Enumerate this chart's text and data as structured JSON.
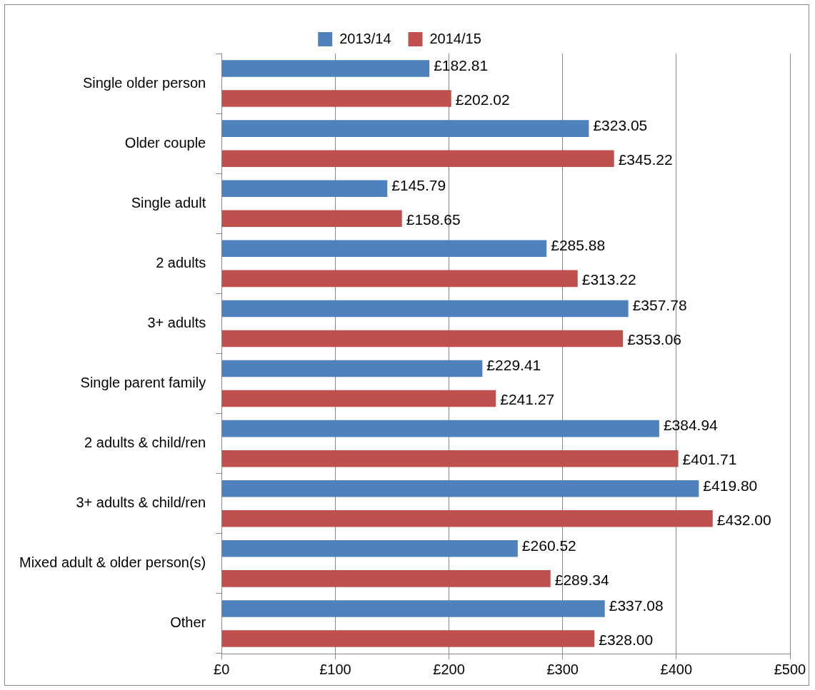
{
  "chart_data": {
    "type": "bar",
    "orientation": "horizontal",
    "legend": "top",
    "grid": "x",
    "categories": [
      "Single older person",
      "Older couple",
      "Single adult",
      "2 adults",
      "3+ adults",
      "Single parent family",
      "2 adults & child/ren",
      "3+ adults & child/ren",
      "Mixed adult & older person(s)",
      "Other"
    ],
    "series": [
      {
        "name": "2013/14",
        "color": "#4f81bd",
        "values": [
          182.81,
          323.05,
          145.79,
          285.88,
          357.78,
          229.41,
          384.94,
          419.8,
          260.52,
          337.08
        ],
        "value_labels": [
          "£182.81",
          "£323.05",
          "£145.79",
          "£285.88",
          "£357.78",
          "£229.41",
          "£384.94",
          "£419.80",
          "£260.52",
          "£337.08"
        ]
      },
      {
        "name": "2014/15",
        "color": "#c0504d",
        "values": [
          202.02,
          345.22,
          158.65,
          313.22,
          353.06,
          241.27,
          401.71,
          432.0,
          289.34,
          328.0
        ],
        "value_labels": [
          "£202.02",
          "£345.22",
          "£158.65",
          "£313.22",
          "£353.06",
          "£241.27",
          "£401.71",
          "£432.00",
          "£289.34",
          "£328.00"
        ]
      }
    ],
    "xlim": [
      0,
      500
    ],
    "xticks": [
      {
        "value": 0,
        "label": "£0"
      },
      {
        "value": 100,
        "label": "£100"
      },
      {
        "value": 200,
        "label": "£200"
      },
      {
        "value": 300,
        "label": "£300"
      },
      {
        "value": 400,
        "label": "£400"
      },
      {
        "value": 500,
        "label": "£500"
      }
    ]
  }
}
